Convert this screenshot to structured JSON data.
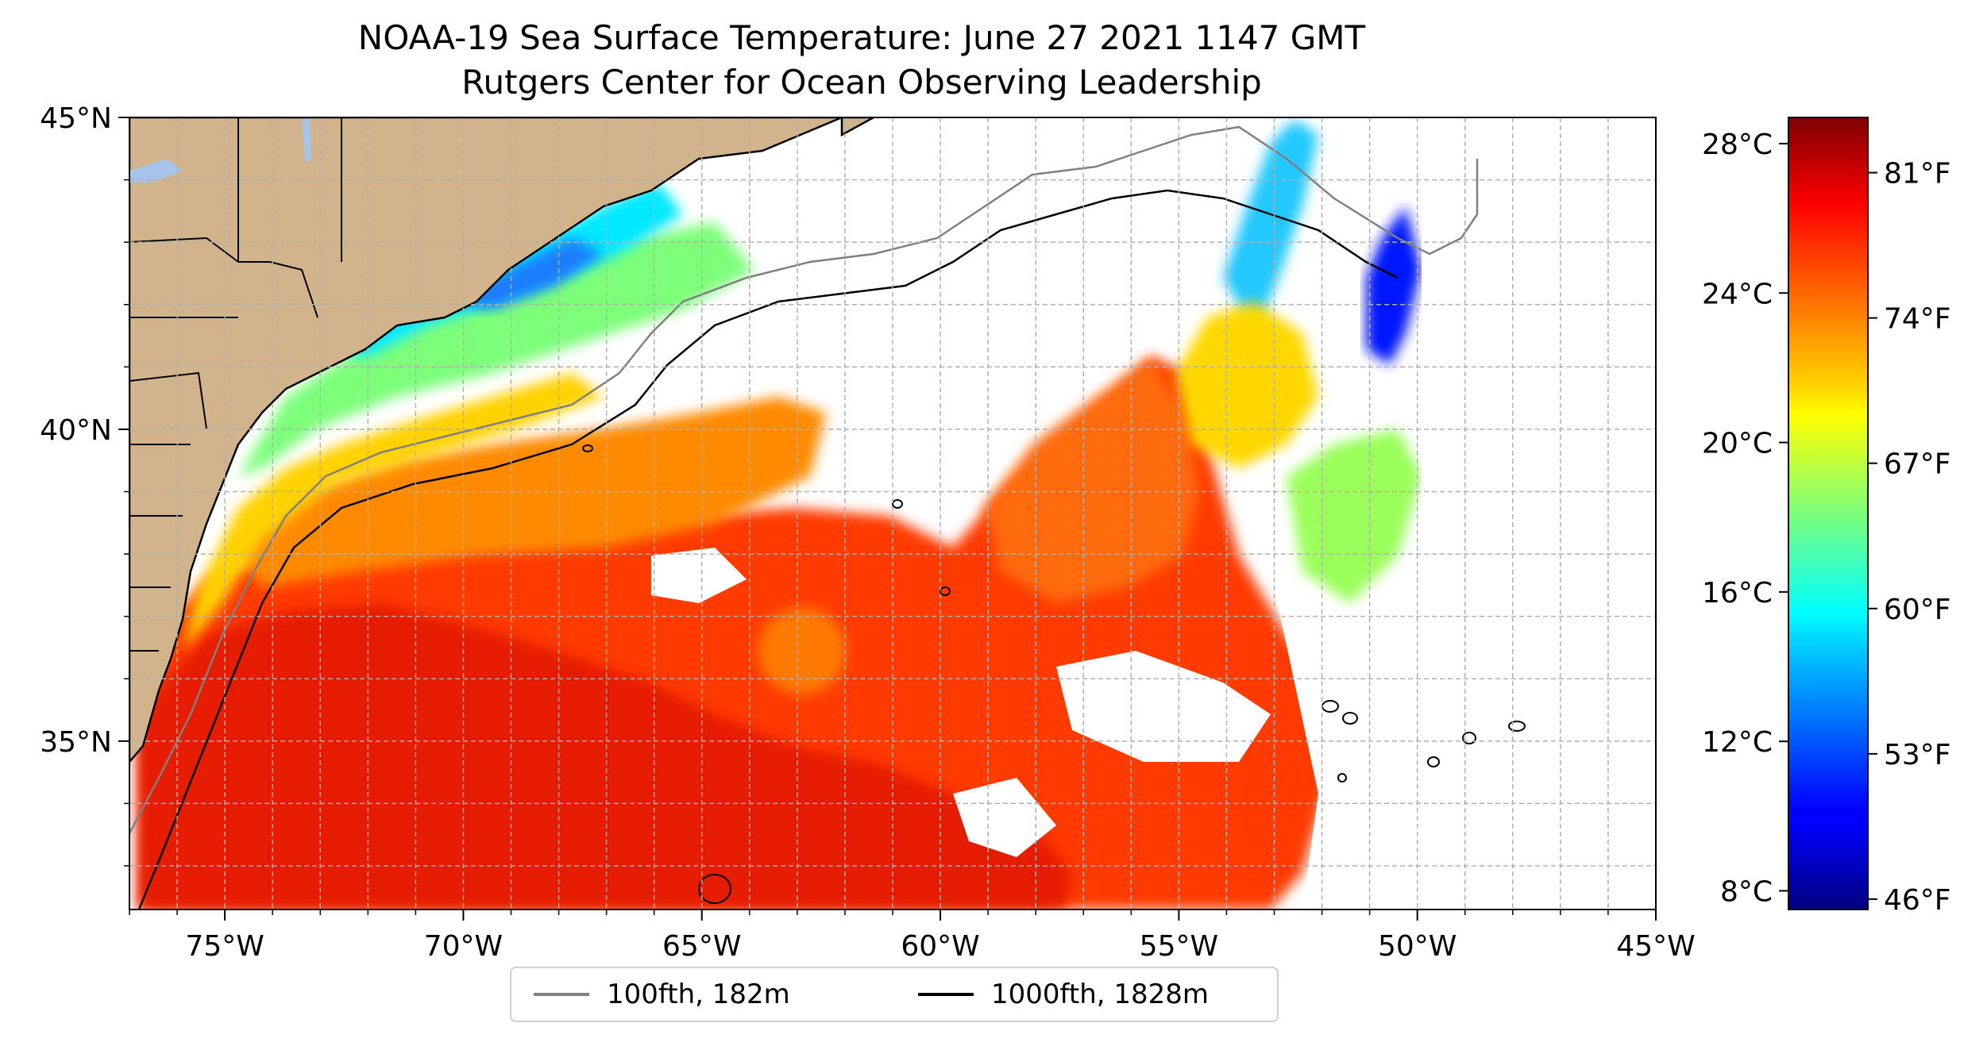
{
  "title": {
    "line1": "NOAA-19 Sea Surface Temperature: June 27 2021 1147 GMT",
    "line2": "Rutgers Center for Ocean Observing Leadership"
  },
  "map": {
    "lon_range": [
      -77,
      -45
    ],
    "lat_range": [
      32.3,
      45
    ],
    "lon_ticks": [
      "75°W",
      "70°W",
      "65°W",
      "60°W",
      "55°W",
      "50°W",
      "45°W"
    ],
    "lat_ticks": [
      "45°N",
      "40°N",
      "35°N"
    ],
    "lon_tick_values": [
      -75,
      -70,
      -65,
      -60,
      -55,
      -50,
      -45
    ],
    "lat_tick_values": [
      45,
      40,
      35
    ],
    "grid": true,
    "land_color": "#d2b48c",
    "lake_color": "#a6c3e8"
  },
  "colorbar": {
    "celsius_ticks": [
      "28°C",
      "24°C",
      "20°C",
      "16°C",
      "12°C",
      "8°C"
    ],
    "celsius_values": [
      28,
      24,
      20,
      16,
      12,
      8
    ],
    "fahrenheit_ticks": [
      "81°F",
      "74°F",
      "67°F",
      "60°F",
      "53°F",
      "46°F"
    ],
    "fahrenheit_values": [
      81,
      74,
      67,
      60,
      53,
      46
    ],
    "range_c": [
      7.5,
      28.7
    ],
    "colormap": "jet"
  },
  "legend": {
    "items": [
      {
        "label": "100fth, 182m",
        "color": "#808080"
      },
      {
        "label": "1000fth, 1828m",
        "color": "#000000"
      }
    ],
    "placement": "bottom-center"
  }
}
